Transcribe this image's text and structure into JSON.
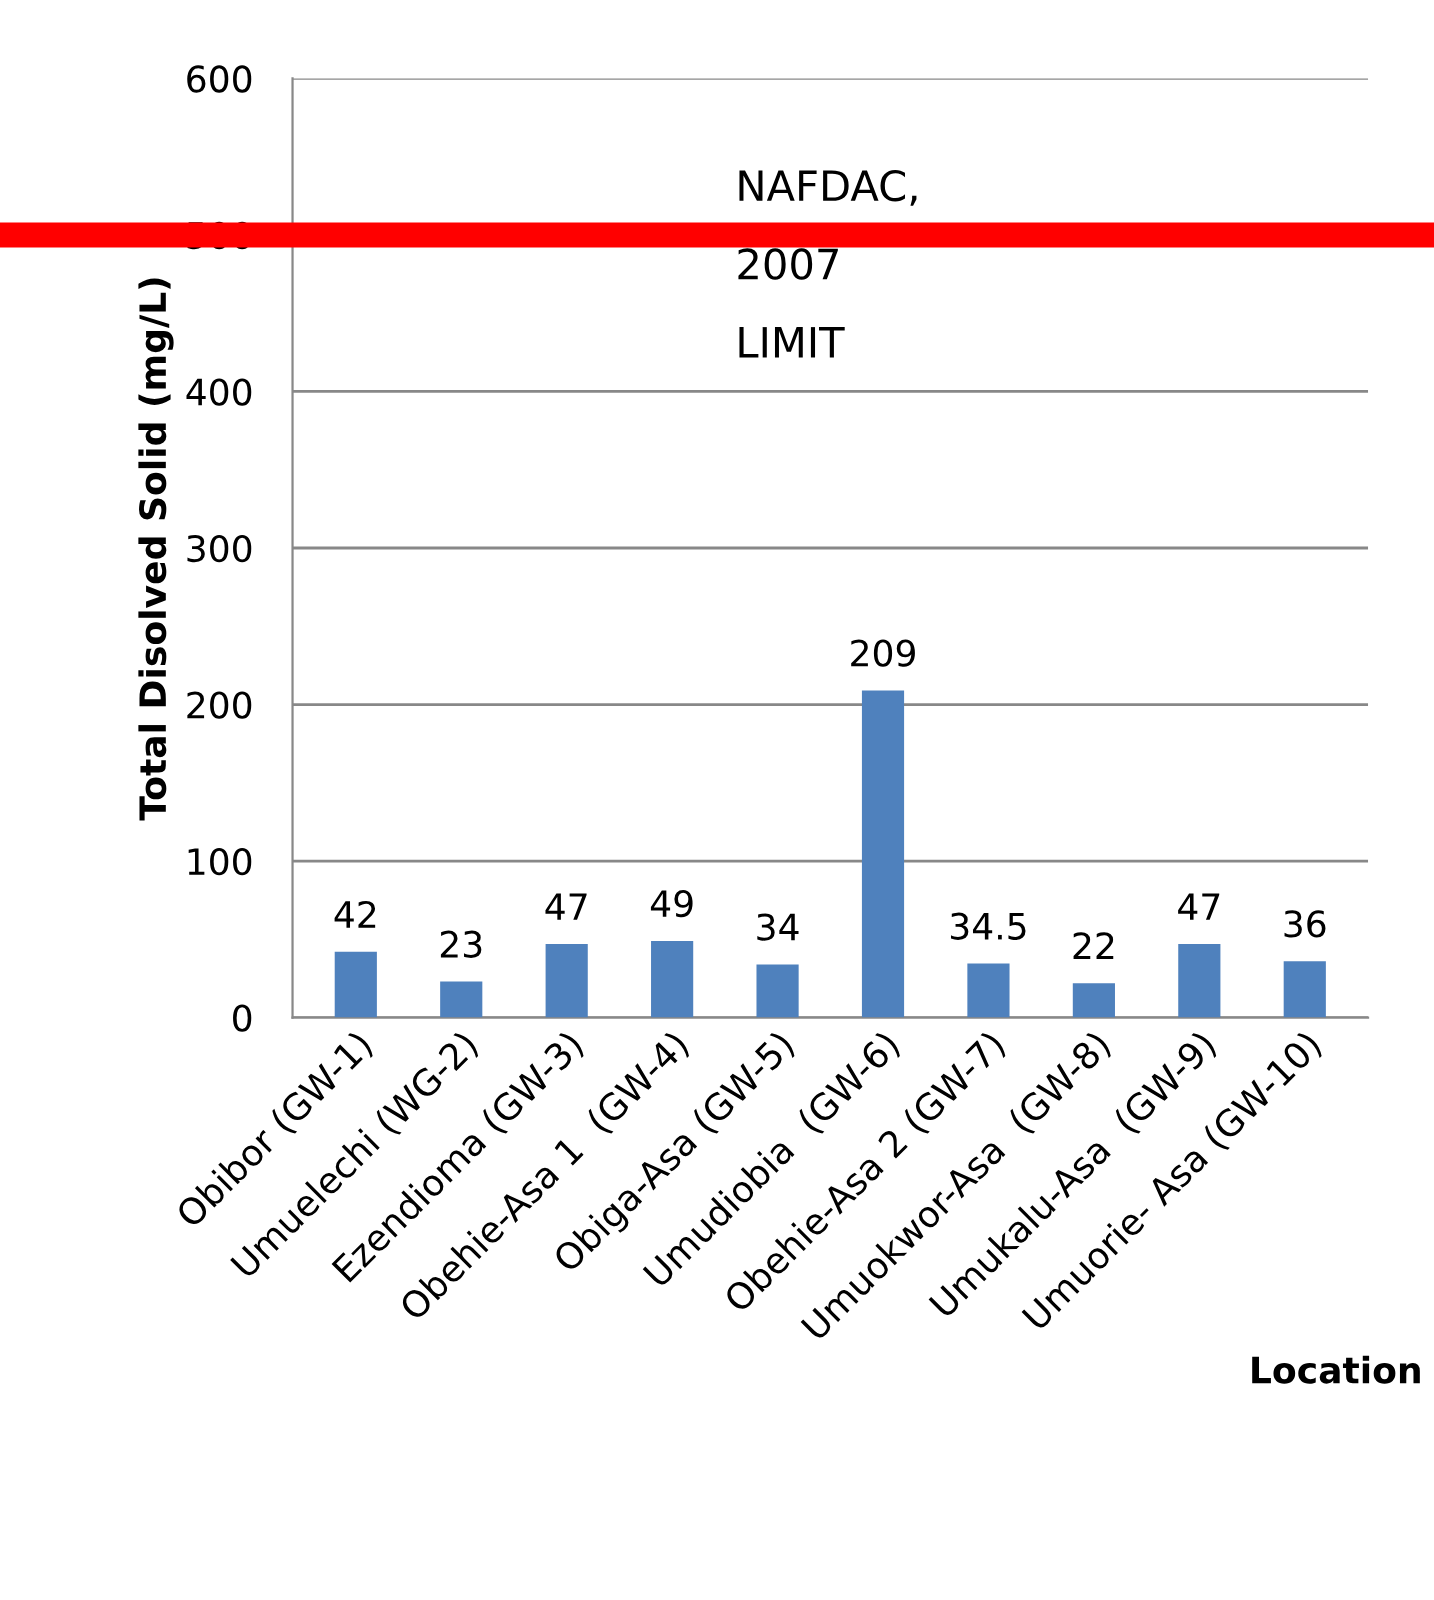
{
  "chart_data": {
    "type": "bar",
    "xlabel": "Location",
    "ylabel": "Total Disolved Solid (mg/L)",
    "categories": [
      "Obibor (GW-1)",
      "Umuelechi (WG-2)",
      "Ezendioma (GW-3)",
      "Obehie-Asa 1  (GW-4)",
      "Obiga-Asa (GW-5)",
      "Umudiobia  (GW-6)",
      "Obehie-Asa 2 (GW-7)",
      "Umuokwor-Asa  (GW-8)",
      "Umukalu-Asa  (GW-9)",
      "Umuorie- Asa (GW-10)"
    ],
    "values": [
      42,
      23,
      47,
      49,
      34,
      209,
      34.5,
      22,
      47,
      36
    ],
    "color": "#4f81bd",
    "data_labels": true,
    "ylim": [
      0,
      600
    ],
    "yticks": [
      0,
      100,
      200,
      300,
      400,
      500,
      600
    ],
    "grid": "y",
    "ref_lines": [
      {
        "axis": "y",
        "value": 500,
        "label": "NAFDAC,\n2007\nLIMIT",
        "color": "#ff0000"
      }
    ]
  }
}
